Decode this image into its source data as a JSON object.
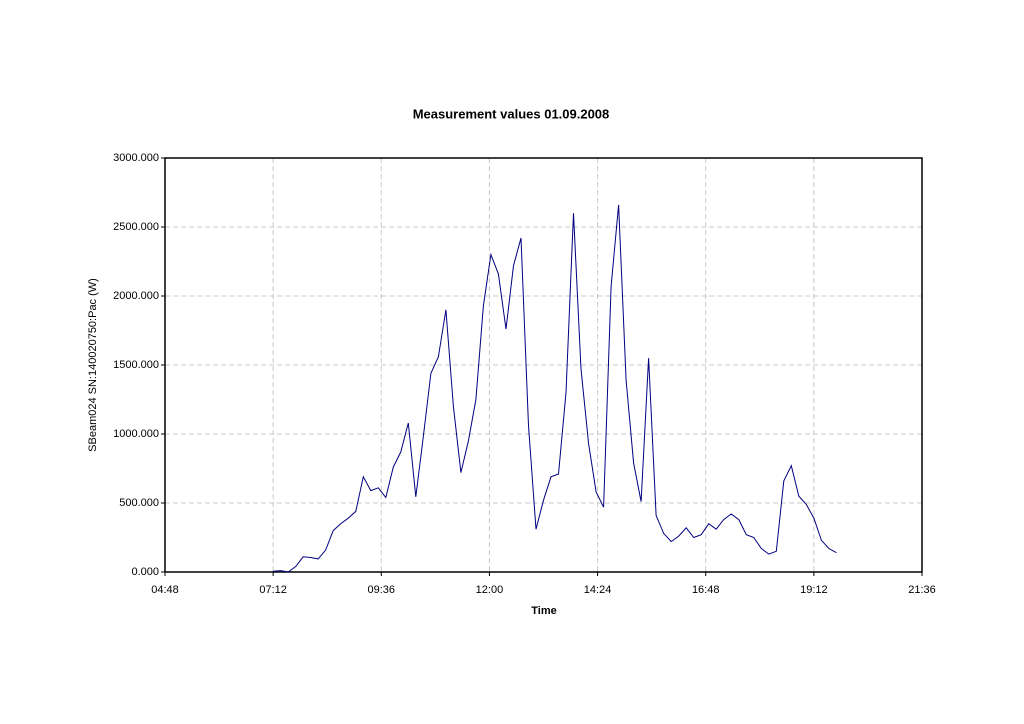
{
  "chart_data": {
    "type": "line",
    "title": "Measurement values 01.09.2008",
    "x_label": "Time",
    "y_label": "SBeam024 SN:140020750:Pac (W)",
    "xlim": [
      288,
      1296
    ],
    "xticks": [
      {
        "value": 288,
        "label": "04:48"
      },
      {
        "value": 432,
        "label": "07:12"
      },
      {
        "value": 576,
        "label": "09:36"
      },
      {
        "value": 720,
        "label": "12:00"
      },
      {
        "value": 864,
        "label": "14:24"
      },
      {
        "value": 1008,
        "label": "16:48"
      },
      {
        "value": 1152,
        "label": "19:12"
      },
      {
        "value": 1296,
        "label": "21:36"
      }
    ],
    "ylim": [
      0,
      3000
    ],
    "yticks": [
      {
        "value": 0,
        "label": "0.000"
      },
      {
        "value": 500,
        "label": "500.000"
      },
      {
        "value": 1000,
        "label": "1000.000"
      },
      {
        "value": 1500,
        "label": "1500.000"
      },
      {
        "value": 2000,
        "label": "2000.000"
      },
      {
        "value": 2500,
        "label": "2500.000"
      },
      {
        "value": 3000,
        "label": "3000.000"
      }
    ],
    "grid": true,
    "x": [
      432,
      442,
      452,
      462,
      472,
      482,
      492,
      502,
      512,
      522,
      532,
      542,
      552,
      562,
      572,
      582,
      592,
      602,
      612,
      622,
      632,
      642,
      652,
      662,
      672,
      682,
      692,
      702,
      712,
      722,
      732,
      742,
      752,
      762,
      772,
      782,
      792,
      802,
      812,
      822,
      832,
      842,
      852,
      862,
      872,
      882,
      892,
      902,
      912,
      922,
      932,
      942,
      952,
      962,
      972,
      982,
      992,
      1002,
      1012,
      1022,
      1032,
      1042,
      1052,
      1062,
      1072,
      1082,
      1092,
      1102,
      1112,
      1122,
      1132,
      1142,
      1152,
      1162,
      1172,
      1182
    ],
    "series": [
      {
        "name": "Pac",
        "color": "#000080",
        "values": [
          5,
          10,
          0,
          40,
          110,
          105,
          95,
          160,
          300,
          350,
          390,
          440,
          690,
          590,
          610,
          540,
          760,
          870,
          1080,
          545,
          980,
          1440,
          1560,
          1900,
          1200,
          720,
          950,
          1250,
          1930,
          2300,
          2160,
          1760,
          2220,
          2420,
          1060,
          310,
          520,
          690,
          710,
          1300,
          2600,
          1470,
          930,
          580,
          470,
          2070,
          2660,
          1390,
          790,
          510,
          1550,
          410,
          280,
          220,
          260,
          320,
          250,
          270,
          350,
          310,
          380,
          420,
          380,
          270,
          250,
          170,
          130,
          150,
          660,
          770,
          550,
          490,
          390,
          230,
          170,
          140
        ]
      }
    ]
  }
}
